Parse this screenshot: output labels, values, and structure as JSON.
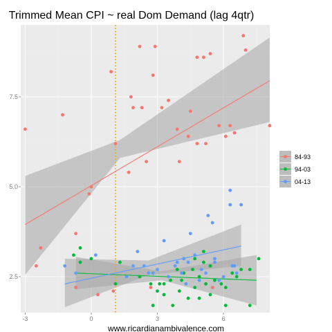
{
  "chart_data": {
    "type": "scatter",
    "title": "Trimmed Mean CPI ~ real Dom Demand (lag 4qtr)",
    "xlabel": "www.ricardianambivalence.com",
    "ylabel": "",
    "xlim": [
      -3.2,
      8.1
    ],
    "ylim": [
      1.5,
      9.5
    ],
    "x_ticks": [
      -3,
      0,
      3,
      6
    ],
    "x_tick_labels": [
      "-3",
      "0",
      "3",
      "6"
    ],
    "y_ticks": [
      2.5,
      5.0,
      7.5
    ],
    "y_tick_labels": [
      "2.5",
      "5.0",
      "7.5"
    ],
    "grid": true,
    "legend_position": "right",
    "vline": {
      "x": 1.1,
      "color": "#f5a623",
      "style": "dotted"
    },
    "series": [
      {
        "name": "84-93",
        "color": "#f8766d",
        "points": [
          [
            -3.0,
            6.6
          ],
          [
            -1.3,
            7.0
          ],
          [
            -2.5,
            2.8
          ],
          [
            -2.3,
            3.3
          ],
          [
            -0.7,
            3.7
          ],
          [
            -0.1,
            4.8
          ],
          [
            0.0,
            5.0
          ],
          [
            0.9,
            8.2
          ],
          [
            1.1,
            6.2
          ],
          [
            1.7,
            5.4
          ],
          [
            1.8,
            7.5
          ],
          [
            1.9,
            7.2
          ],
          [
            2.2,
            8.9
          ],
          [
            2.3,
            7.2
          ],
          [
            2.5,
            5.7
          ],
          [
            2.8,
            8.1
          ],
          [
            2.9,
            8.9
          ],
          [
            3.2,
            7.2
          ],
          [
            3.5,
            7.4
          ],
          [
            3.9,
            6.6
          ],
          [
            4.0,
            5.7
          ],
          [
            4.4,
            6.4
          ],
          [
            4.5,
            7.1
          ],
          [
            4.8,
            6.2
          ],
          [
            4.8,
            8.6
          ],
          [
            5.1,
            8.6
          ],
          [
            5.2,
            6.2
          ],
          [
            5.4,
            8.7
          ],
          [
            5.8,
            6.7
          ],
          [
            6.1,
            6.4
          ],
          [
            6.3,
            6.7
          ],
          [
            6.5,
            6.5
          ],
          [
            6.9,
            9.2
          ],
          [
            7.0,
            8.8
          ],
          [
            8.1,
            6.7
          ],
          [
            -0.7,
            2.2
          ],
          [
            0.3,
            2.0
          ],
          [
            1.0,
            2.1
          ],
          [
            2.7,
            2.2
          ],
          [
            5.5,
            2.2
          ]
        ]
      },
      {
        "name": "94-03",
        "color": "#00ba38",
        "points": [
          [
            -0.8,
            3.1
          ],
          [
            -0.5,
            3.3
          ],
          [
            -0.5,
            2.9
          ],
          [
            0.0,
            3.0
          ],
          [
            1.1,
            2.3
          ],
          [
            1.3,
            2.9
          ],
          [
            2.2,
            2.5
          ],
          [
            2.7,
            2.3
          ],
          [
            2.8,
            1.7
          ],
          [
            3.0,
            2.1
          ],
          [
            3.1,
            2.3
          ],
          [
            3.3,
            2.0
          ],
          [
            3.3,
            2.3
          ],
          [
            3.6,
            2.4
          ],
          [
            3.7,
            1.7
          ],
          [
            3.9,
            2.7
          ],
          [
            4.0,
            2.1
          ],
          [
            4.1,
            2.4
          ],
          [
            4.2,
            2.6
          ],
          [
            4.4,
            1.9
          ],
          [
            4.6,
            2.7
          ],
          [
            4.7,
            2.2
          ],
          [
            4.9,
            1.9
          ],
          [
            4.9,
            2.5
          ],
          [
            5.1,
            2.9
          ],
          [
            5.2,
            2.3
          ],
          [
            5.4,
            2.0
          ],
          [
            5.4,
            2.8
          ],
          [
            5.6,
            2.4
          ],
          [
            5.9,
            2.3
          ],
          [
            6.1,
            2.2
          ],
          [
            6.1,
            1.7
          ],
          [
            6.4,
            2.6
          ],
          [
            6.6,
            2.5
          ],
          [
            6.8,
            2.7
          ],
          [
            7.2,
            2.7
          ],
          [
            7.2,
            1.7
          ],
          [
            7.6,
            3.0
          ],
          [
            5.1,
            3.2
          ],
          [
            4.7,
            3.0
          ]
        ]
      },
      {
        "name": "04-13",
        "color": "#619cff",
        "points": [
          [
            -1.2,
            2.8
          ],
          [
            -0.7,
            2.6
          ],
          [
            0.2,
            3.1
          ],
          [
            1.6,
            2.5
          ],
          [
            2.1,
            3.2
          ],
          [
            2.4,
            2.8
          ],
          [
            2.6,
            2.6
          ],
          [
            3.0,
            2.7
          ],
          [
            3.3,
            3.5
          ],
          [
            3.5,
            2.5
          ],
          [
            3.8,
            2.8
          ],
          [
            3.9,
            2.9
          ],
          [
            4.2,
            3.0
          ],
          [
            4.4,
            2.9
          ],
          [
            4.5,
            3.7
          ],
          [
            4.7,
            3.1
          ],
          [
            4.9,
            2.4
          ],
          [
            5.0,
            2.7
          ],
          [
            5.2,
            2.6
          ],
          [
            5.3,
            4.2
          ],
          [
            5.5,
            4.0
          ],
          [
            5.6,
            2.9
          ],
          [
            5.8,
            2.4
          ],
          [
            6.0,
            2.5
          ],
          [
            6.3,
            4.9
          ],
          [
            6.3,
            4.5
          ],
          [
            6.4,
            2.8
          ],
          [
            6.5,
            2.8
          ],
          [
            6.6,
            2.6
          ],
          [
            6.8,
            4.5
          ],
          [
            4.1,
            2.6
          ],
          [
            4.3,
            2.3
          ],
          [
            2.8,
            2.6
          ],
          [
            1.9,
            2.8
          ],
          [
            5.6,
            3.0
          ]
        ]
      }
    ],
    "fit_lines": [
      {
        "series": "84-93",
        "color": "#f8766d",
        "from": [
          -3.0,
          3.95
        ],
        "to": [
          8.1,
          7.95
        ],
        "band_left": [
          5.3,
          2.55
        ],
        "band_mid_x": 1.3,
        "band_mid": [
          6.3,
          5.8
        ],
        "band_right": [
          9.15,
          6.8
        ]
      },
      {
        "series": "94-03",
        "color": "#00ba38",
        "from": [
          -0.7,
          2.6
        ],
        "to": [
          7.5,
          2.4
        ],
        "band_left": [
          3.05,
          2.15
        ],
        "band_mid_x": 3.2,
        "band_mid": [
          2.65,
          2.4
        ],
        "band_right": [
          3.1,
          1.7
        ]
      },
      {
        "series": "04-13",
        "color": "#619cff",
        "from": [
          -1.2,
          2.3
        ],
        "to": [
          6.8,
          3.35
        ],
        "band_left": [
          3.0,
          1.65
        ],
        "band_mid_x": 2.6,
        "band_mid": [
          2.95,
          2.55
        ],
        "band_right": [
          3.95,
          2.8
        ]
      }
    ]
  }
}
